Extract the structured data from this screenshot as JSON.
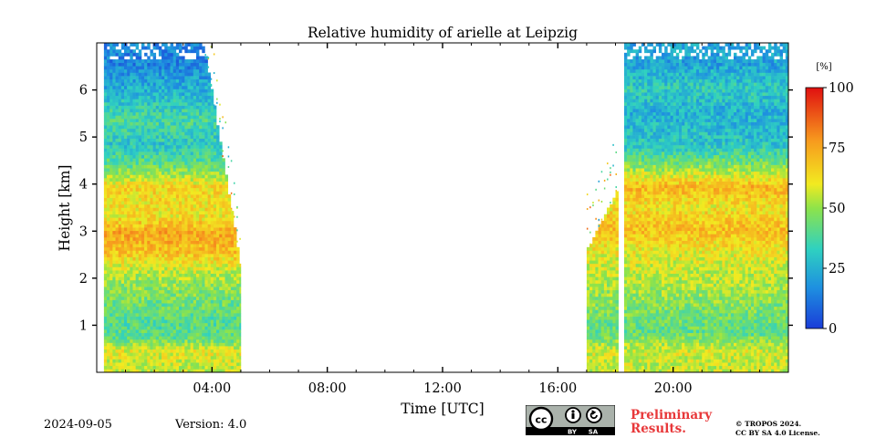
{
  "chart_data": {
    "type": "heatmap",
    "title": "Relative humidity of arielle at Leipzig",
    "xlabel": "Time [UTC]",
    "ylabel": "Height [km]",
    "xlim": [
      0,
      24
    ],
    "ylim": [
      0,
      7
    ],
    "x_ticks": [
      {
        "value": 4,
        "label": "04:00"
      },
      {
        "value": 8,
        "label": "08:00"
      },
      {
        "value": 12,
        "label": "12:00"
      },
      {
        "value": 16,
        "label": "16:00"
      },
      {
        "value": 20,
        "label": "20:00"
      }
    ],
    "y_ticks": [
      {
        "value": 1,
        "label": "1"
      },
      {
        "value": 2,
        "label": "2"
      },
      {
        "value": 3,
        "label": "3"
      },
      {
        "value": 4,
        "label": "4"
      },
      {
        "value": 5,
        "label": "5"
      },
      {
        "value": 6,
        "label": "6"
      }
    ],
    "colorbar": {
      "unit": "[%]",
      "range": [
        0,
        100
      ],
      "ticks": [
        {
          "value": 0,
          "label": "0"
        },
        {
          "value": 25,
          "label": "25"
        },
        {
          "value": 50,
          "label": "50"
        },
        {
          "value": 75,
          "label": "75"
        },
        {
          "value": 100,
          "label": "100"
        }
      ],
      "colors": [
        "#1a3cd8",
        "#1e90e0",
        "#2fd1c0",
        "#8ee34a",
        "#f2ea20",
        "#f79a1e",
        "#e01010"
      ]
    },
    "data_intervals": [
      {
        "start": 0.25,
        "end": 5.0
      },
      {
        "start": 17.0,
        "end": 18.1
      },
      {
        "start": 18.3,
        "end": 24.0
      }
    ],
    "profile_morning": [
      {
        "h": 0.1,
        "rh": 55
      },
      {
        "h": 0.4,
        "rh": 60
      },
      {
        "h": 0.7,
        "rh": 42
      },
      {
        "h": 1.0,
        "rh": 40
      },
      {
        "h": 1.5,
        "rh": 45
      },
      {
        "h": 2.0,
        "rh": 52
      },
      {
        "h": 2.5,
        "rh": 68
      },
      {
        "h": 2.9,
        "rh": 75
      },
      {
        "h": 3.3,
        "rh": 62
      },
      {
        "h": 3.9,
        "rh": 65
      },
      {
        "h": 4.3,
        "rh": 45
      },
      {
        "h": 4.8,
        "rh": 30
      },
      {
        "h": 5.3,
        "rh": 38
      },
      {
        "h": 6.0,
        "rh": 25
      },
      {
        "h": 6.5,
        "rh": 15
      }
    ],
    "profile_evening": [
      {
        "h": 0.1,
        "rh": 55
      },
      {
        "h": 0.4,
        "rh": 58
      },
      {
        "h": 0.8,
        "rh": 42
      },
      {
        "h": 1.3,
        "rh": 46
      },
      {
        "h": 2.0,
        "rh": 55
      },
      {
        "h": 2.5,
        "rh": 60
      },
      {
        "h": 3.0,
        "rh": 70
      },
      {
        "h": 3.5,
        "rh": 62
      },
      {
        "h": 3.9,
        "rh": 72
      },
      {
        "h": 4.3,
        "rh": 50
      },
      {
        "h": 4.8,
        "rh": 30
      },
      {
        "h": 5.5,
        "rh": 25
      },
      {
        "h": 6.0,
        "rh": 32
      },
      {
        "h": 6.5,
        "rh": 22
      }
    ]
  },
  "footer": {
    "date": "2024-09-05",
    "version": "Version: 4.0",
    "preliminary_line1": "Preliminary",
    "preliminary_line2": "Results.",
    "copyright_line1": "© TROPOS 2024.",
    "copyright_line2": "CC BY SA 4.0 License.",
    "badge_left": "BY",
    "badge_right": "SA"
  }
}
